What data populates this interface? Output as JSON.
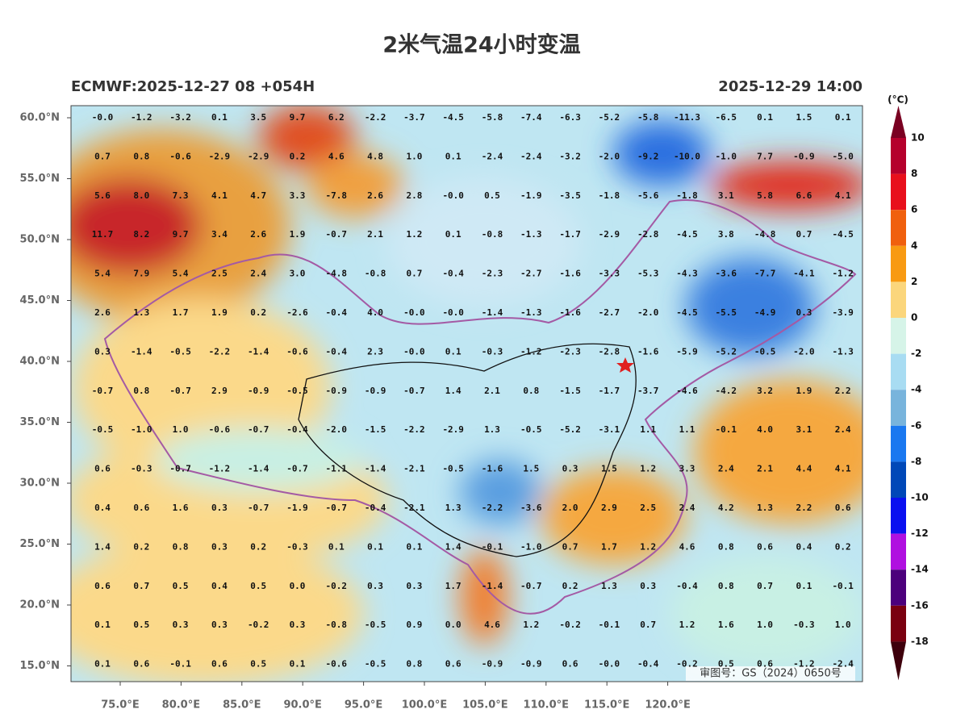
{
  "header": {
    "title": "2米气温24小时变温",
    "left": "ECMWF:2025-12-27 08 +054H",
    "right": "2025-12-29 14:00"
  },
  "lat_labels": [
    "60.0°N",
    "55.0°N",
    "50.0°N",
    "45.0°N",
    "40.0°N",
    "35.0°N",
    "30.0°N",
    "25.0°N",
    "20.0°N",
    "15.0°N"
  ],
  "lon_labels": [
    "75.0°E",
    "80.0°E",
    "85.0°E",
    "90.0°E",
    "95.0°E",
    "100.0°E",
    "105.0°E",
    "110.0°E",
    "115.0°E",
    "120.0°E"
  ],
  "grid": {
    "rows": [
      [
        "-0.0",
        "-1.2",
        "-3.2",
        "0.1",
        "3.5",
        "9.7",
        "6.2",
        "-2.2",
        "-3.7",
        "-4.5",
        "-5.8",
        "-7.4",
        "-6.3",
        "-5.2",
        "-5.8",
        "-11.3",
        "-6.5",
        "0.1",
        "1.5",
        "0.1"
      ],
      [
        "0.7",
        "0.8",
        "-0.6",
        "-2.9",
        "-2.9",
        "0.2",
        "4.6",
        "4.8",
        "1.0",
        "0.1",
        "-2.4",
        "-2.4",
        "-3.2",
        "-2.0",
        "-9.2",
        "-10.0",
        "-1.0",
        "7.7",
        "-0.9",
        "-5.0"
      ],
      [
        "5.6",
        "8.0",
        "7.3",
        "4.1",
        "4.7",
        "3.3",
        "-7.8",
        "2.6",
        "2.8",
        "-0.0",
        "0.5",
        "-1.9",
        "-3.5",
        "-1.8",
        "-5.6",
        "-1.8",
        "3.1",
        "5.8",
        "6.6",
        "4.1"
      ],
      [
        "11.7",
        "8.2",
        "9.7",
        "3.4",
        "2.6",
        "1.9",
        "-0.7",
        "2.1",
        "1.2",
        "0.1",
        "-0.8",
        "-1.3",
        "-1.7",
        "-2.9",
        "-2.8",
        "-4.5",
        "3.8",
        "-4.8",
        "0.7",
        "-4.5"
      ],
      [
        "5.4",
        "7.9",
        "5.4",
        "2.5",
        "2.4",
        "3.0",
        "-4.8",
        "-0.8",
        "0.7",
        "-0.4",
        "-2.3",
        "-2.7",
        "-1.6",
        "-3.3",
        "-5.3",
        "-4.3",
        "-3.6",
        "-7.7",
        "-4.1",
        "-1.2"
      ],
      [
        "2.6",
        "1.3",
        "1.7",
        "1.9",
        "0.2",
        "-2.6",
        "-0.4",
        "4.0",
        "-0.0",
        "-0.0",
        "-1.4",
        "-1.3",
        "-1.6",
        "-2.7",
        "-2.0",
        "-4.5",
        "-5.5",
        "-4.9",
        "0.3",
        "-3.9"
      ],
      [
        "0.3",
        "-1.4",
        "-0.5",
        "-2.2",
        "-1.4",
        "-0.6",
        "-0.4",
        "2.3",
        "-0.0",
        "0.1",
        "-0.3",
        "-1.2",
        "-2.3",
        "-2.8",
        "-1.6",
        "-5.9",
        "-5.2",
        "-0.5",
        "-2.0",
        "-1.3"
      ],
      [
        "-0.7",
        "0.8",
        "-0.7",
        "2.9",
        "-0.9",
        "-0.5",
        "-0.9",
        "-0.9",
        "-0.7",
        "1.4",
        "2.1",
        "0.8",
        "-1.5",
        "-1.7",
        "-3.7",
        "-4.6",
        "-4.2",
        "3.2",
        "1.9",
        "2.2"
      ],
      [
        "-0.5",
        "-1.0",
        "1.0",
        "-0.6",
        "-0.7",
        "-0.4",
        "-2.0",
        "-1.5",
        "-2.2",
        "-2.9",
        "1.3",
        "-0.5",
        "-5.2",
        "-3.1",
        "1.1",
        "1.1",
        "-0.1",
        "4.0",
        "3.1",
        "2.4"
      ],
      [
        "0.6",
        "-0.3",
        "-0.7",
        "-1.2",
        "-1.4",
        "-0.7",
        "-1.1",
        "-1.4",
        "-2.1",
        "-0.5",
        "-1.6",
        "1.5",
        "0.3",
        "1.5",
        "1.2",
        "3.3",
        "2.4",
        "2.1",
        "4.4",
        "4.1"
      ],
      [
        "0.4",
        "0.6",
        "1.6",
        "0.3",
        "-0.7",
        "-1.9",
        "-0.7",
        "-0.4",
        "-2.1",
        "1.3",
        "-2.2",
        "-3.6",
        "2.0",
        "2.9",
        "2.5",
        "2.4",
        "4.2",
        "1.3",
        "2.2",
        "0.6"
      ],
      [
        "1.4",
        "0.2",
        "0.8",
        "0.3",
        "0.2",
        "-0.3",
        "0.1",
        "0.1",
        "0.1",
        "1.4",
        "-0.1",
        "-1.0",
        "0.7",
        "1.7",
        "1.2",
        "4.6",
        "0.8",
        "0.6",
        "0.4",
        "0.2"
      ],
      [
        "0.6",
        "0.7",
        "0.5",
        "0.4",
        "0.5",
        "0.0",
        "-0.2",
        "0.3",
        "0.3",
        "1.7",
        "-1.4",
        "-0.7",
        "0.2",
        "1.3",
        "0.3",
        "-0.4",
        "0.8",
        "0.7",
        "0.1",
        "-0.1"
      ],
      [
        "0.1",
        "0.5",
        "0.3",
        "0.3",
        "-0.2",
        "0.3",
        "-0.8",
        "-0.5",
        "0.9",
        "0.0",
        "4.6",
        "1.2",
        "-0.2",
        "-0.1",
        "0.7",
        "1.2",
        "1.6",
        "1.0",
        "-0.3",
        "1.0"
      ],
      [
        "0.1",
        "0.6",
        "-0.1",
        "0.6",
        "0.5",
        "0.1",
        "-0.6",
        "-0.5",
        "0.8",
        "0.6",
        "-0.9",
        "-0.9",
        "0.6",
        "-0.0",
        "-0.4",
        "-0.2",
        "0.5",
        "0.6",
        "-1.2",
        "-2.4"
      ]
    ]
  },
  "colorbar": {
    "unit": "(°C)",
    "labels": [
      "10",
      "8",
      "6",
      "4",
      "2",
      "0",
      "-2",
      "-4",
      "-6",
      "-8",
      "-10",
      "-12",
      "-14",
      "-16",
      "-18"
    ],
    "colors": [
      "#7a0022",
      "#b5002c",
      "#e8101c",
      "#f0600e",
      "#f89a12",
      "#fbd67c",
      "#d6f4e8",
      "#a8dcf2",
      "#78b4dc",
      "#1a78f0",
      "#0048b8",
      "#0a10f0",
      "#b010e0",
      "#4c007c",
      "#7a0010",
      "#3e000c"
    ]
  },
  "watermark": "审图号：GS（2024）0650号"
}
